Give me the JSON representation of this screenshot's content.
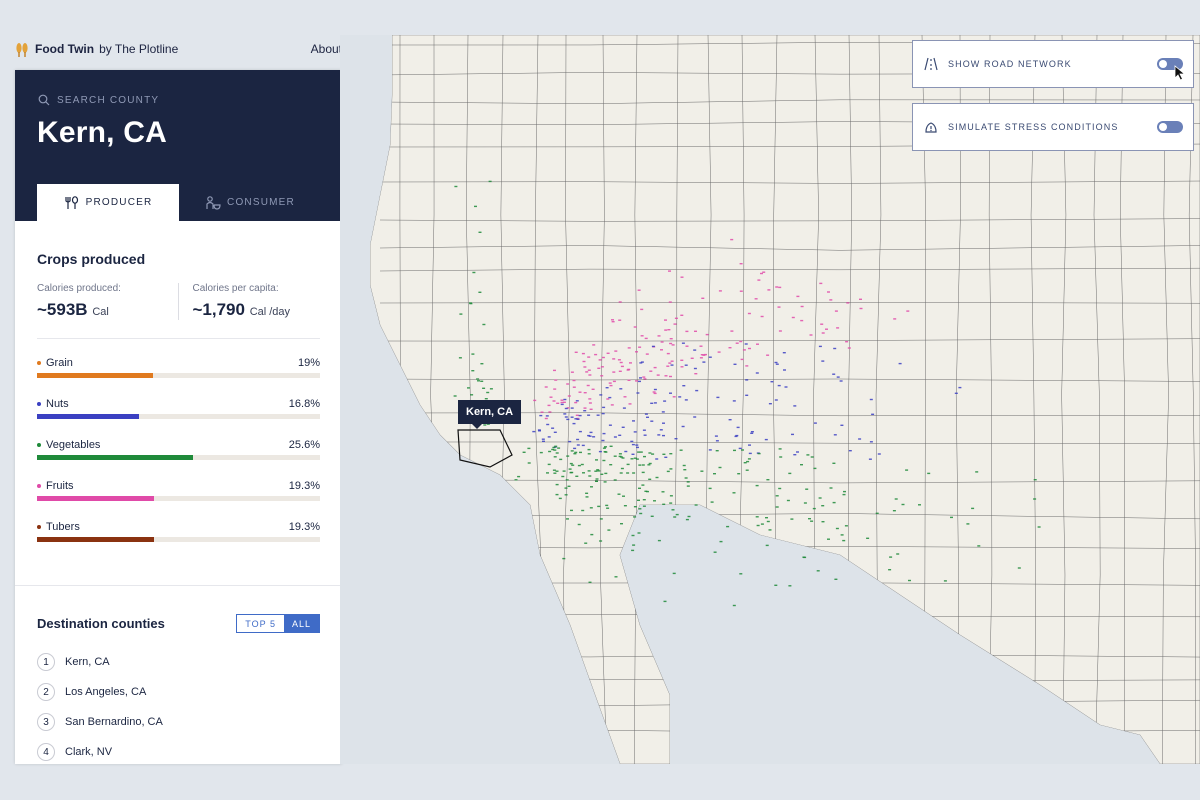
{
  "header": {
    "brand_name": "Food Twin",
    "brand_suffix": "by The Plotline",
    "about_label": "About",
    "logo_icon": "grain-logo-icon"
  },
  "sidebar": {
    "search_placeholder": "SEARCH COUNTY",
    "county": "Kern, CA",
    "tabs": [
      {
        "label": "PRODUCER",
        "icon": "producer-icon",
        "active": true
      },
      {
        "label": "CONSUMER",
        "icon": "consumer-icon",
        "active": false
      }
    ],
    "crops_title": "Crops produced",
    "stats": [
      {
        "label": "Calories produced:",
        "value": "~593B",
        "unit": "Cal"
      },
      {
        "label": "Calories per capita:",
        "value": "~1,790",
        "unit": "Cal /day"
      }
    ],
    "crops": [
      {
        "name": "Grain",
        "percent_label": "19%",
        "percent": 19,
        "color": "#e07a1f"
      },
      {
        "name": "Nuts",
        "percent_label": "16.8%",
        "percent": 16.8,
        "color": "#3b40c2"
      },
      {
        "name": "Vegetables",
        "percent_label": "25.6%",
        "percent": 25.6,
        "color": "#1f8a3a"
      },
      {
        "name": "Fruits",
        "percent_label": "19.3%",
        "percent": 19.3,
        "color": "#e04aa8"
      },
      {
        "name": "Tubers",
        "percent_label": "19.3%",
        "percent": 19.3,
        "color": "#8a3210"
      }
    ],
    "destinations": {
      "title": "Destination counties",
      "toggle": [
        {
          "label": "TOP 5",
          "active": false
        },
        {
          "label": "ALL",
          "active": true
        }
      ],
      "items": [
        {
          "rank": "1",
          "name": "Kern, CA"
        },
        {
          "rank": "2",
          "name": "Los Angeles, CA"
        },
        {
          "rank": "3",
          "name": "San Bernardino, CA"
        },
        {
          "rank": "4",
          "name": "Clark, NV"
        }
      ]
    }
  },
  "map": {
    "controls": [
      {
        "label": "SHOW ROAD NETWORK",
        "icon": "road-icon",
        "enabled": false
      },
      {
        "label": "SIMULATE STRESS CONDITIONS",
        "icon": "stress-icon",
        "enabled": false
      }
    ],
    "origin_label": "Kern, CA",
    "land_color": "#f1efe8",
    "water_color": "#dde3e9",
    "border_color": "#555555"
  }
}
